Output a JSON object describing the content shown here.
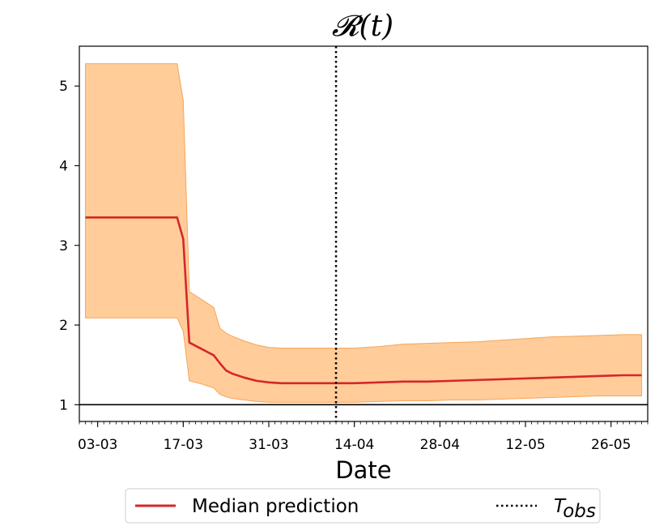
{
  "chart_data": {
    "type": "line",
    "title": "𝓡(t)",
    "xlabel": "Date",
    "ylabel": "",
    "date_year": 2020,
    "xlim": [
      "2020-02-29",
      "2020-06-01"
    ],
    "ylim": [
      0.79,
      5.5
    ],
    "yticks": [
      1,
      2,
      3,
      4,
      5
    ],
    "xticks": [
      {
        "date": "2020-03-03",
        "label": "03-03"
      },
      {
        "date": "2020-03-17",
        "label": "17-03"
      },
      {
        "date": "2020-03-31",
        "label": "31-03"
      },
      {
        "date": "2020-04-14",
        "label": "14-04"
      },
      {
        "date": "2020-04-28",
        "label": "28-04"
      },
      {
        "date": "2020-05-12",
        "label": "12-05"
      },
      {
        "date": "2020-05-26",
        "label": "26-05"
      }
    ],
    "reference_line_y": 1,
    "t_obs_date": "2020-04-11",
    "colors": {
      "median": "#d62728",
      "band_fill": "#ffbb78",
      "band_edge": "#f5a55a",
      "reference": "#000000",
      "t_obs": "#000000"
    },
    "series": [
      {
        "name": "Median prediction",
        "x": [
          "2020-03-01",
          "2020-03-05",
          "2020-03-10",
          "2020-03-15",
          "2020-03-16",
          "2020-03-17",
          "2020-03-18",
          "2020-03-20",
          "2020-03-22",
          "2020-03-23",
          "2020-03-24",
          "2020-03-25",
          "2020-03-27",
          "2020-03-29",
          "2020-03-31",
          "2020-04-02",
          "2020-04-05",
          "2020-04-08",
          "2020-04-11",
          "2020-04-14",
          "2020-04-18",
          "2020-04-22",
          "2020-04-26",
          "2020-04-30",
          "2020-05-04",
          "2020-05-08",
          "2020-05-12",
          "2020-05-16",
          "2020-05-20",
          "2020-05-24",
          "2020-05-28",
          "2020-05-31"
        ],
        "values": [
          3.35,
          3.35,
          3.35,
          3.35,
          3.35,
          3.08,
          1.78,
          1.7,
          1.62,
          1.52,
          1.43,
          1.39,
          1.34,
          1.3,
          1.28,
          1.27,
          1.27,
          1.27,
          1.27,
          1.27,
          1.28,
          1.29,
          1.29,
          1.3,
          1.31,
          1.32,
          1.33,
          1.34,
          1.35,
          1.36,
          1.37,
          1.37
        ]
      }
    ],
    "interval": {
      "x": [
        "2020-03-01",
        "2020-03-05",
        "2020-03-10",
        "2020-03-15",
        "2020-03-16",
        "2020-03-17",
        "2020-03-18",
        "2020-03-20",
        "2020-03-22",
        "2020-03-23",
        "2020-03-24",
        "2020-03-25",
        "2020-03-27",
        "2020-03-29",
        "2020-03-31",
        "2020-04-02",
        "2020-04-05",
        "2020-04-08",
        "2020-04-11",
        "2020-04-14",
        "2020-04-18",
        "2020-04-22",
        "2020-04-26",
        "2020-04-30",
        "2020-05-04",
        "2020-05-08",
        "2020-05-12",
        "2020-05-16",
        "2020-05-20",
        "2020-05-24",
        "2020-05-28",
        "2020-05-31"
      ],
      "upper": [
        5.28,
        5.28,
        5.28,
        5.28,
        5.28,
        4.82,
        2.42,
        2.32,
        2.22,
        1.96,
        1.9,
        1.86,
        1.8,
        1.75,
        1.72,
        1.71,
        1.71,
        1.71,
        1.71,
        1.71,
        1.73,
        1.76,
        1.77,
        1.78,
        1.79,
        1.81,
        1.83,
        1.85,
        1.86,
        1.87,
        1.88,
        1.88
      ],
      "lower": [
        2.09,
        2.09,
        2.09,
        2.09,
        2.09,
        1.92,
        1.3,
        1.26,
        1.21,
        1.13,
        1.1,
        1.08,
        1.06,
        1.04,
        1.03,
        1.03,
        1.03,
        1.03,
        1.03,
        1.03,
        1.04,
        1.05,
        1.05,
        1.06,
        1.06,
        1.07,
        1.08,
        1.09,
        1.1,
        1.11,
        1.11,
        1.11
      ]
    },
    "legend": {
      "placement": "bottom-center outside",
      "entries": [
        {
          "label": "Median prediction",
          "style": "solid"
        },
        {
          "label_main": "T",
          "label_sub": "obs",
          "style": "dotted"
        }
      ]
    },
    "grid": false
  }
}
